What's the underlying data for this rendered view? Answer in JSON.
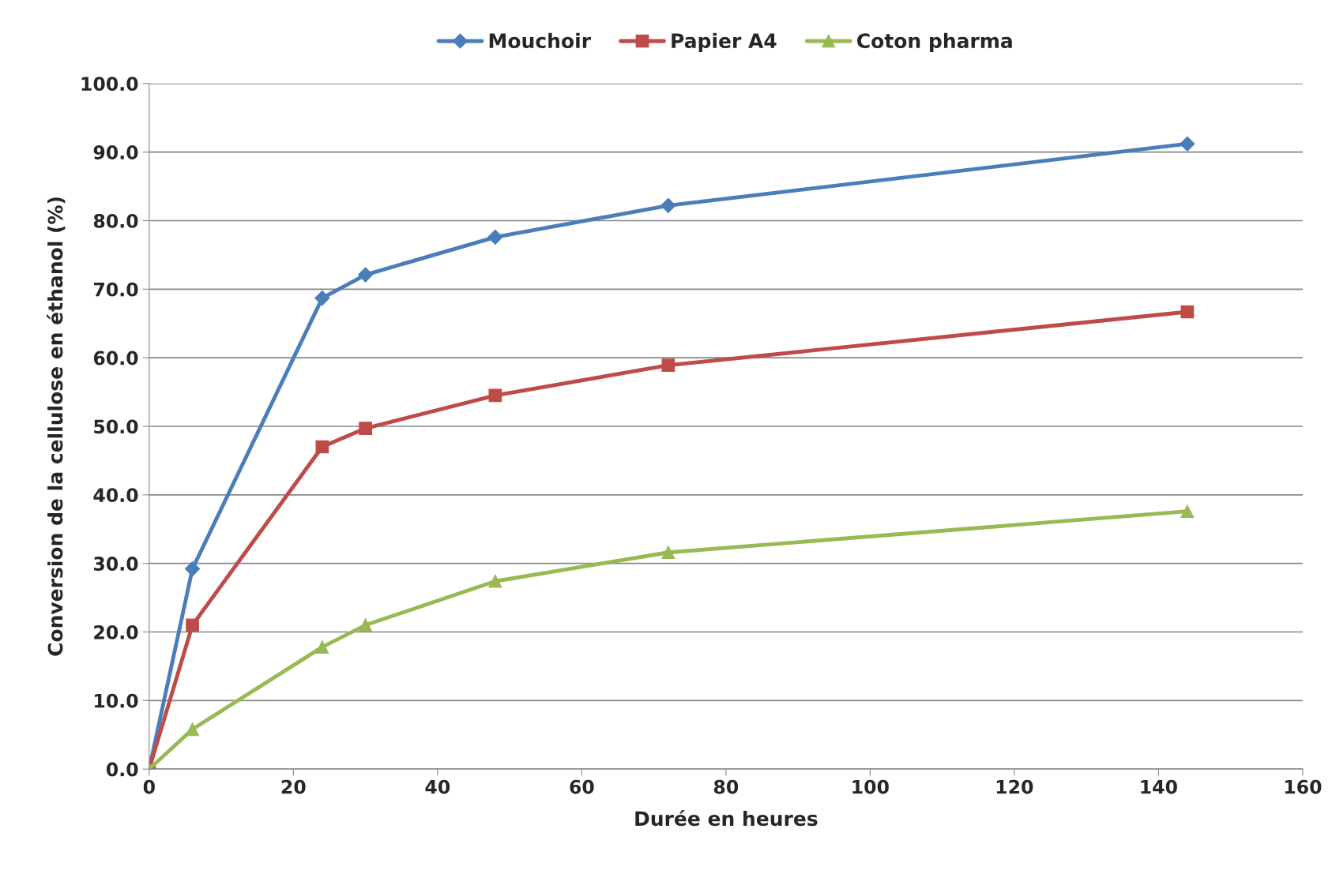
{
  "chart_data": {
    "type": "line",
    "xlabel": "Durée en heures",
    "ylabel": "Conversion de la cellulose en éthanol (%)",
    "x": [
      0,
      6,
      24,
      30,
      48,
      72,
      144
    ],
    "series": [
      {
        "name": "Mouchoir",
        "color": "#4a7ebb",
        "marker": "diamond",
        "values": [
          0,
          29.2,
          68.7,
          72.1,
          77.6,
          82.2,
          91.2
        ]
      },
      {
        "name": "Papier A4",
        "color": "#be4b48",
        "marker": "square",
        "values": [
          0,
          21.0,
          47.0,
          49.7,
          54.5,
          58.9,
          66.7
        ]
      },
      {
        "name": "Coton pharma",
        "color": "#98b954",
        "marker": "triangle",
        "values": [
          0,
          5.8,
          17.8,
          21.0,
          27.4,
          31.6,
          37.6
        ]
      }
    ],
    "xlim": [
      0,
      160
    ],
    "xticks": [
      0,
      20,
      40,
      60,
      80,
      100,
      120,
      140,
      160
    ],
    "ylim": [
      0,
      100
    ],
    "yticks": [
      {
        "value": 0,
        "label": "0.0"
      },
      {
        "value": 10,
        "label": "10.0"
      },
      {
        "value": 20,
        "label": "20.0"
      },
      {
        "value": 30,
        "label": "30.0"
      },
      {
        "value": 40,
        "label": "40.0"
      },
      {
        "value": 50,
        "label": "50.0"
      },
      {
        "value": 60,
        "label": "60.0"
      },
      {
        "value": 70,
        "label": "70.0"
      },
      {
        "value": 80,
        "label": "80.0"
      },
      {
        "value": 90,
        "label": "90.0"
      },
      {
        "value": 100,
        "label": "100.0"
      }
    ],
    "grid": "y",
    "legend": "top",
    "line_style": "solid"
  }
}
